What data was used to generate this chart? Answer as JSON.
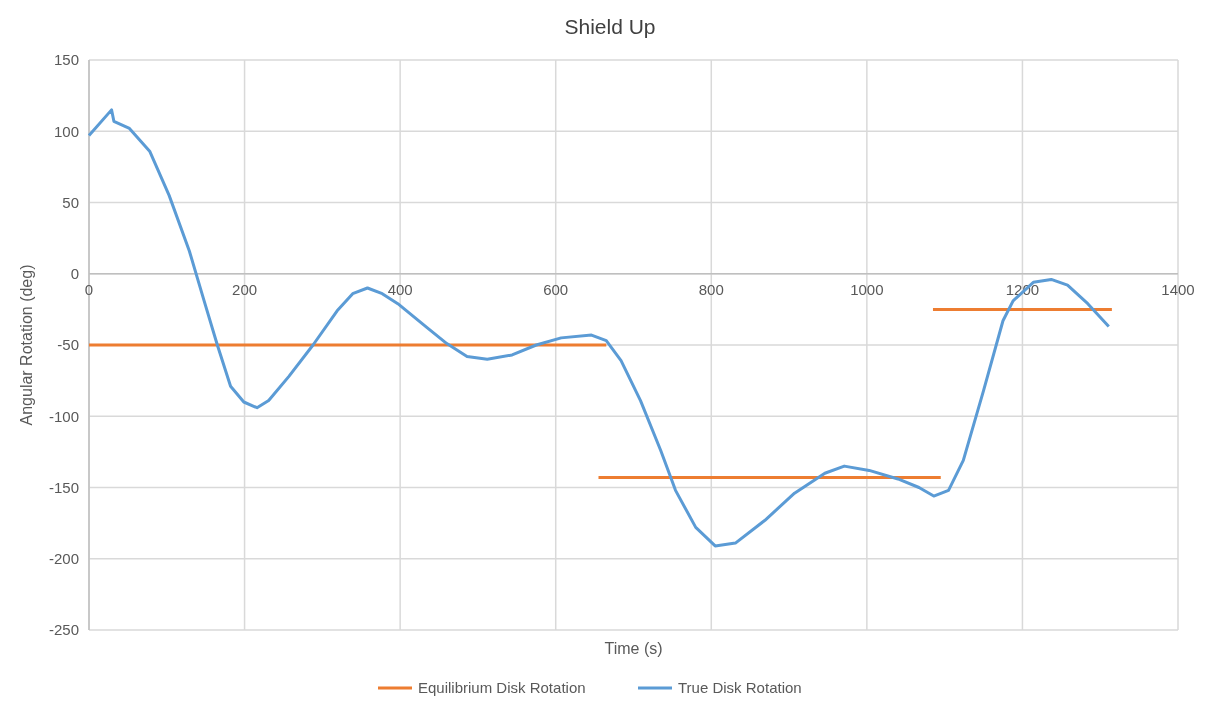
{
  "chart_data": {
    "type": "line",
    "title": "Shield Up",
    "xlabel": "Time (s)",
    "ylabel": "Angular Rotation (deg)",
    "xlim": [
      0,
      1400
    ],
    "xticks": [
      0,
      200,
      400,
      600,
      800,
      1000,
      1200,
      1400
    ],
    "ylim": [
      -250,
      150
    ],
    "yticks": [
      -250,
      -200,
      -150,
      -100,
      -50,
      0,
      50,
      100,
      150
    ],
    "grid": true,
    "legend": "bottom",
    "marker": "none",
    "line_style": "solid",
    "series": [
      {
        "name": "Equilibrium Disk Rotation",
        "color": "#ed7d31",
        "x": [
          0,
          665
        ],
        "values": [
          -50,
          -50
        ]
      },
      {
        "color": "#ed7d31",
        "x": [
          655,
          1095
        ],
        "values": [
          -143,
          -143
        ]
      },
      {
        "color": "#ed7d31",
        "x": [
          1085,
          1315
        ],
        "values": [
          -25,
          -25
        ]
      },
      {
        "name": "True Disk Rotation",
        "color": "#5b9bd5",
        "x": [
          0,
          29,
          32,
          52,
          78,
          103,
          129,
          148,
          165,
          182,
          199,
          216,
          231,
          257,
          288,
          319,
          339,
          358,
          377,
          397,
          435,
          460,
          486,
          512,
          544,
          575,
          607,
          646,
          665,
          684,
          709,
          735,
          754,
          780,
          805,
          831,
          869,
          907,
          946,
          971,
          1003,
          1040,
          1067,
          1086,
          1105,
          1124,
          1150,
          1175,
          1188,
          1214,
          1237,
          1258,
          1284,
          1311
        ],
        "values": [
          97,
          115,
          107,
          102,
          86,
          55,
          16,
          -19,
          -50,
          -79,
          -90,
          -94,
          -89,
          -72,
          -50,
          -26,
          -14,
          -10,
          -14,
          -21,
          -38,
          -49,
          -58,
          -60,
          -57,
          -50,
          -45,
          -43,
          -47,
          -61,
          -89,
          -124,
          -152,
          -178,
          -191,
          -189,
          -173,
          -154,
          -140,
          -135,
          -138,
          -144,
          -150,
          -156,
          -152,
          -131,
          -82,
          -33,
          -19,
          -6,
          -4,
          -8,
          -21,
          -37
        ]
      }
    ]
  }
}
